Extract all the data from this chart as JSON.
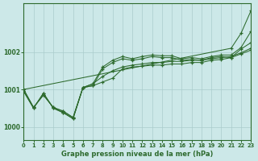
{
  "background_color": "#cce8e8",
  "grid_color": "#aacccc",
  "line_color": "#2d6a2d",
  "title": "Graphe pression niveau de la mer (hPa)",
  "xlim": [
    0,
    23
  ],
  "ylim": [
    999.65,
    1003.3
  ],
  "yticks": [
    1000,
    1001,
    1002
  ],
  "xticks": [
    0,
    1,
    2,
    3,
    4,
    5,
    6,
    7,
    8,
    9,
    10,
    11,
    12,
    13,
    14,
    15,
    16,
    17,
    18,
    19,
    20,
    21,
    22,
    23
  ],
  "series": [
    [
      1000.95,
      1000.5,
      1000.9,
      1000.5,
      1000.38,
      1000.22,
      1001.05,
      1001.1,
      1001.2,
      1001.3,
      1001.55,
      1001.6,
      1001.62,
      1001.65,
      1001.65,
      1001.68,
      1001.68,
      1001.72,
      1001.72,
      1001.78,
      1001.8,
      1001.85,
      1001.95,
      1002.05
    ],
    [
      1000.95,
      1000.5,
      1000.9,
      1000.5,
      1000.38,
      1000.22,
      1001.05,
      1001.15,
      1001.35,
      1001.5,
      1001.6,
      1001.65,
      1001.68,
      1001.72,
      1001.72,
      1001.75,
      1001.75,
      1001.78,
      1001.78,
      1001.82,
      1001.85,
      1001.88,
      1001.98,
      1002.1
    ],
    [
      1001.0,
      1000.52,
      1000.85,
      1000.52,
      1000.42,
      1000.25,
      1001.05,
      1001.1,
      1001.55,
      1001.72,
      1001.82,
      1001.78,
      1001.82,
      1001.88,
      1001.85,
      1001.85,
      1001.78,
      1001.8,
      1001.78,
      1001.85,
      1001.88,
      1001.85,
      1002.08,
      1002.25
    ],
    [
      1001.0,
      1000.52,
      1000.85,
      1000.52,
      1000.42,
      1000.25,
      1001.05,
      1001.15,
      1001.6,
      1001.78,
      1001.88,
      1001.82,
      1001.88,
      1001.92,
      1001.9,
      1001.9,
      1001.82,
      1001.85,
      1001.82,
      1001.88,
      1001.92,
      1001.92,
      1002.12,
      1002.55
    ]
  ],
  "spike_series_x": [
    0,
    21,
    22,
    23
  ],
  "spike_series_y": [
    1001.0,
    1002.1,
    1002.5,
    1003.1
  ]
}
